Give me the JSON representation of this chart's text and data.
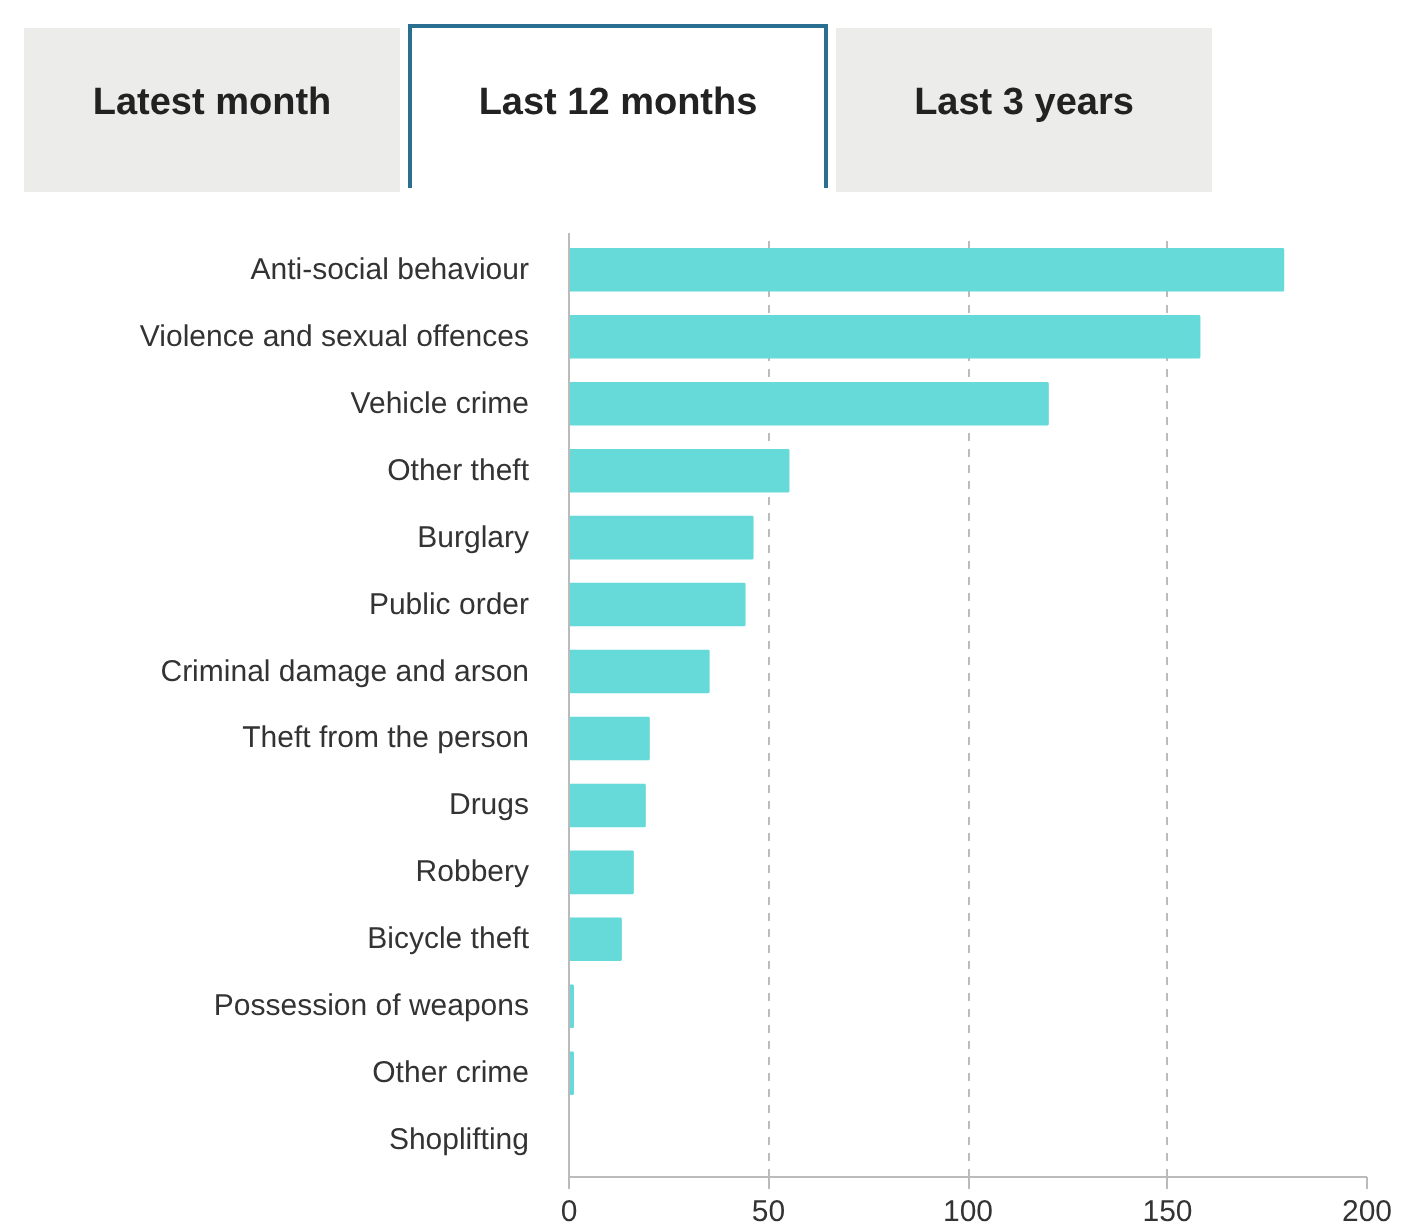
{
  "chart_data": {
    "type": "bar",
    "orientation": "horizontal",
    "annotations": [
      "Latest month",
      "Last 12 months",
      "Last 3 years"
    ],
    "categories": [
      "Anti-social behaviour",
      "Violence and sexual offences",
      "Vehicle crime",
      "Other theft",
      "Burglary",
      "Public order",
      "Criminal damage and arson",
      "Theft from the person",
      "Drugs",
      "Robbery",
      "Bicycle theft",
      "Possession of weapons",
      "Other crime",
      "Shoplifting"
    ],
    "values": [
      179,
      158,
      120,
      55,
      46,
      44,
      35,
      20,
      19,
      16,
      13,
      1,
      1,
      0
    ],
    "color": "#66d9d9",
    "xlim": [
      0,
      200
    ],
    "xticks": [
      0,
      50,
      100,
      150,
      200
    ],
    "grid": "x"
  }
}
